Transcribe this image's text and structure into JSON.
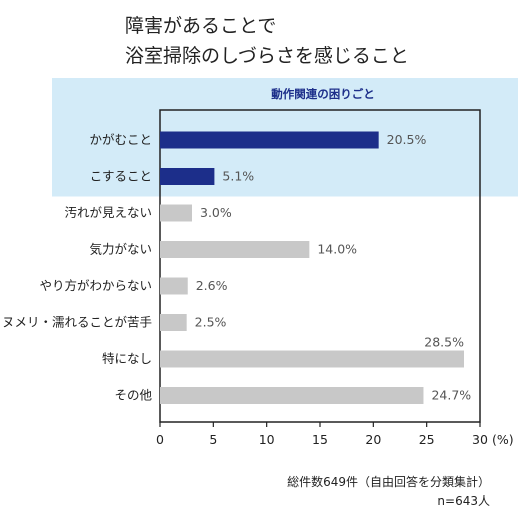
{
  "title_lines": [
    "障害があることで",
    "浴室掃除のしづらさを感じること"
  ],
  "group_label": "動作関連の困りごと",
  "footnote": {
    "line1": "総件数649件（自由回答を分類集計）",
    "line2": "n=643人"
  },
  "colors": {
    "highlight": "#1c2e8a",
    "normal": "#c8c8c8",
    "group_bg": "#d3ebf8"
  },
  "chart_data": {
    "type": "bar",
    "orientation": "horizontal",
    "title": "障害があることで 浴室掃除のしづらさを感じること",
    "categories": [
      "かがむこと",
      "こすること",
      "汚れが見えない",
      "気力がない",
      "やり方がわからない",
      "ヌメリ・濡れることが苦手",
      "特になし",
      "その他"
    ],
    "values": [
      20.5,
      5.1,
      3.0,
      14.0,
      2.6,
      2.5,
      28.5,
      24.7
    ],
    "value_labels": [
      "20.5%",
      "5.1%",
      "3.0%",
      "14.0%",
      "2.6%",
      "2.5%",
      "28.5%",
      "24.7%"
    ],
    "highlighted": [
      true,
      true,
      false,
      false,
      false,
      false,
      false,
      false
    ],
    "xlim": [
      0,
      30
    ],
    "xticks": [
      "0",
      "5",
      "10",
      "15",
      "20",
      "25",
      "30"
    ],
    "xunit": "(%)",
    "grid": false
  }
}
